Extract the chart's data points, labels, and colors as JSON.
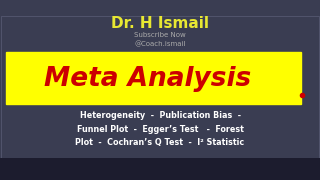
{
  "background_color": "#3a3d52",
  "title_name": "Dr. H Ismail",
  "title_color": "#e8e832",
  "subtitle1": "Subscribe Now",
  "subtitle1_color": "#aaaaaa",
  "subtitle2": "@Coach.ismail",
  "subtitle2_color": "#aaaaaa",
  "banner_text": "Meta Analysis",
  "banner_bg": "#ffff00",
  "banner_text_color": "#cc0000",
  "body_line1": "Heterogeneity  -  Publication Bias  -",
  "body_line2": "Funnel Plot  -  Egger’s Test   -  Forest",
  "body_line3": "Plot  -  Cochran’s Q Test  -  I² Statistic",
  "body_color": "#ffffff",
  "red_dot_color": "#cc0000",
  "taskbar_color": "#1c1c2e",
  "border_color": "#555870"
}
